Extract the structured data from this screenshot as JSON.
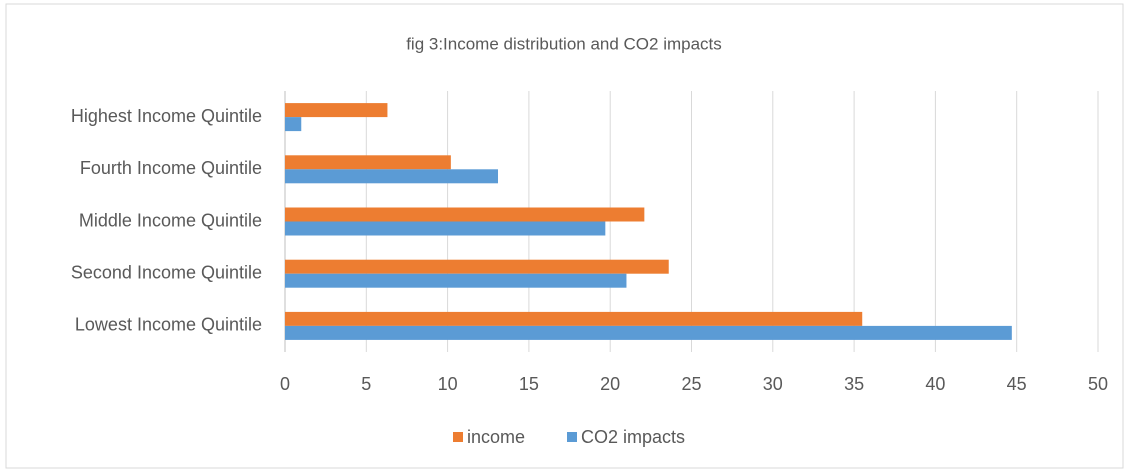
{
  "chart_data": {
    "type": "hbar",
    "title": "fig 3:Income distribution and CO2 impacts",
    "categories": [
      "Lowest Income Quintile",
      "Second Income Quintile",
      "Middle Income Quintile",
      "Fourth Income Quintile",
      "Highest Income Quintile"
    ],
    "series": [
      {
        "name": "income",
        "color": "#ed7d31",
        "values": [
          35.5,
          23.6,
          22.1,
          10.2,
          6.3
        ]
      },
      {
        "name": "CO2 impacts",
        "color": "#5b9bd5",
        "values": [
          44.7,
          21.0,
          19.7,
          13.1,
          1.0
        ]
      }
    ],
    "xlim": [
      0,
      50
    ],
    "xticks": [
      0,
      5,
      10,
      15,
      20,
      25,
      30,
      35,
      40,
      45,
      50
    ],
    "grid": true,
    "legend": "bottom"
  }
}
